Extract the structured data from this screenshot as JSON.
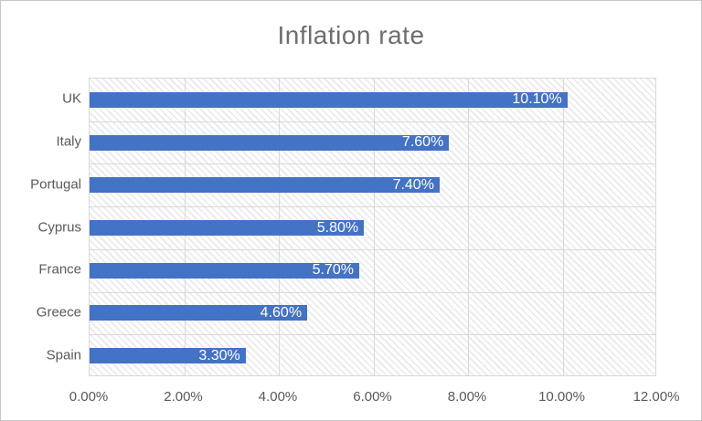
{
  "chart_data": {
    "type": "bar",
    "orientation": "horizontal",
    "title": "Inflation rate",
    "categories": [
      "UK",
      "Italy",
      "Portugal",
      "Cyprus",
      "France",
      "Greece",
      "Spain"
    ],
    "values": [
      10.1,
      7.6,
      7.4,
      5.8,
      5.7,
      4.6,
      3.3
    ],
    "data_labels": [
      "10.10%",
      "7.60%",
      "7.40%",
      "5.80%",
      "5.70%",
      "4.60%",
      "3.30%"
    ],
    "xlabel": "",
    "ylabel": "",
    "xlim": [
      0,
      12
    ],
    "x_tick_values": [
      0,
      2,
      4,
      6,
      8,
      10,
      12
    ],
    "x_tick_labels": [
      "0.00%",
      "2.00%",
      "4.00%",
      "6.00%",
      "8.00%",
      "10.00%",
      "12.00%"
    ],
    "grid": true,
    "legend_position": "none",
    "plot_fill_pattern": "light-downward-diagonal-hatch",
    "colors": {
      "bar": "#4472C4",
      "data_label": "#FFFFFF",
      "axis_text": "#595959",
      "title_text": "#6E6E6E",
      "gridline": "#D9D9D9",
      "hatch": "#E9E9E9",
      "background": "#FFFFFF",
      "border": "#C6C6C6"
    }
  }
}
